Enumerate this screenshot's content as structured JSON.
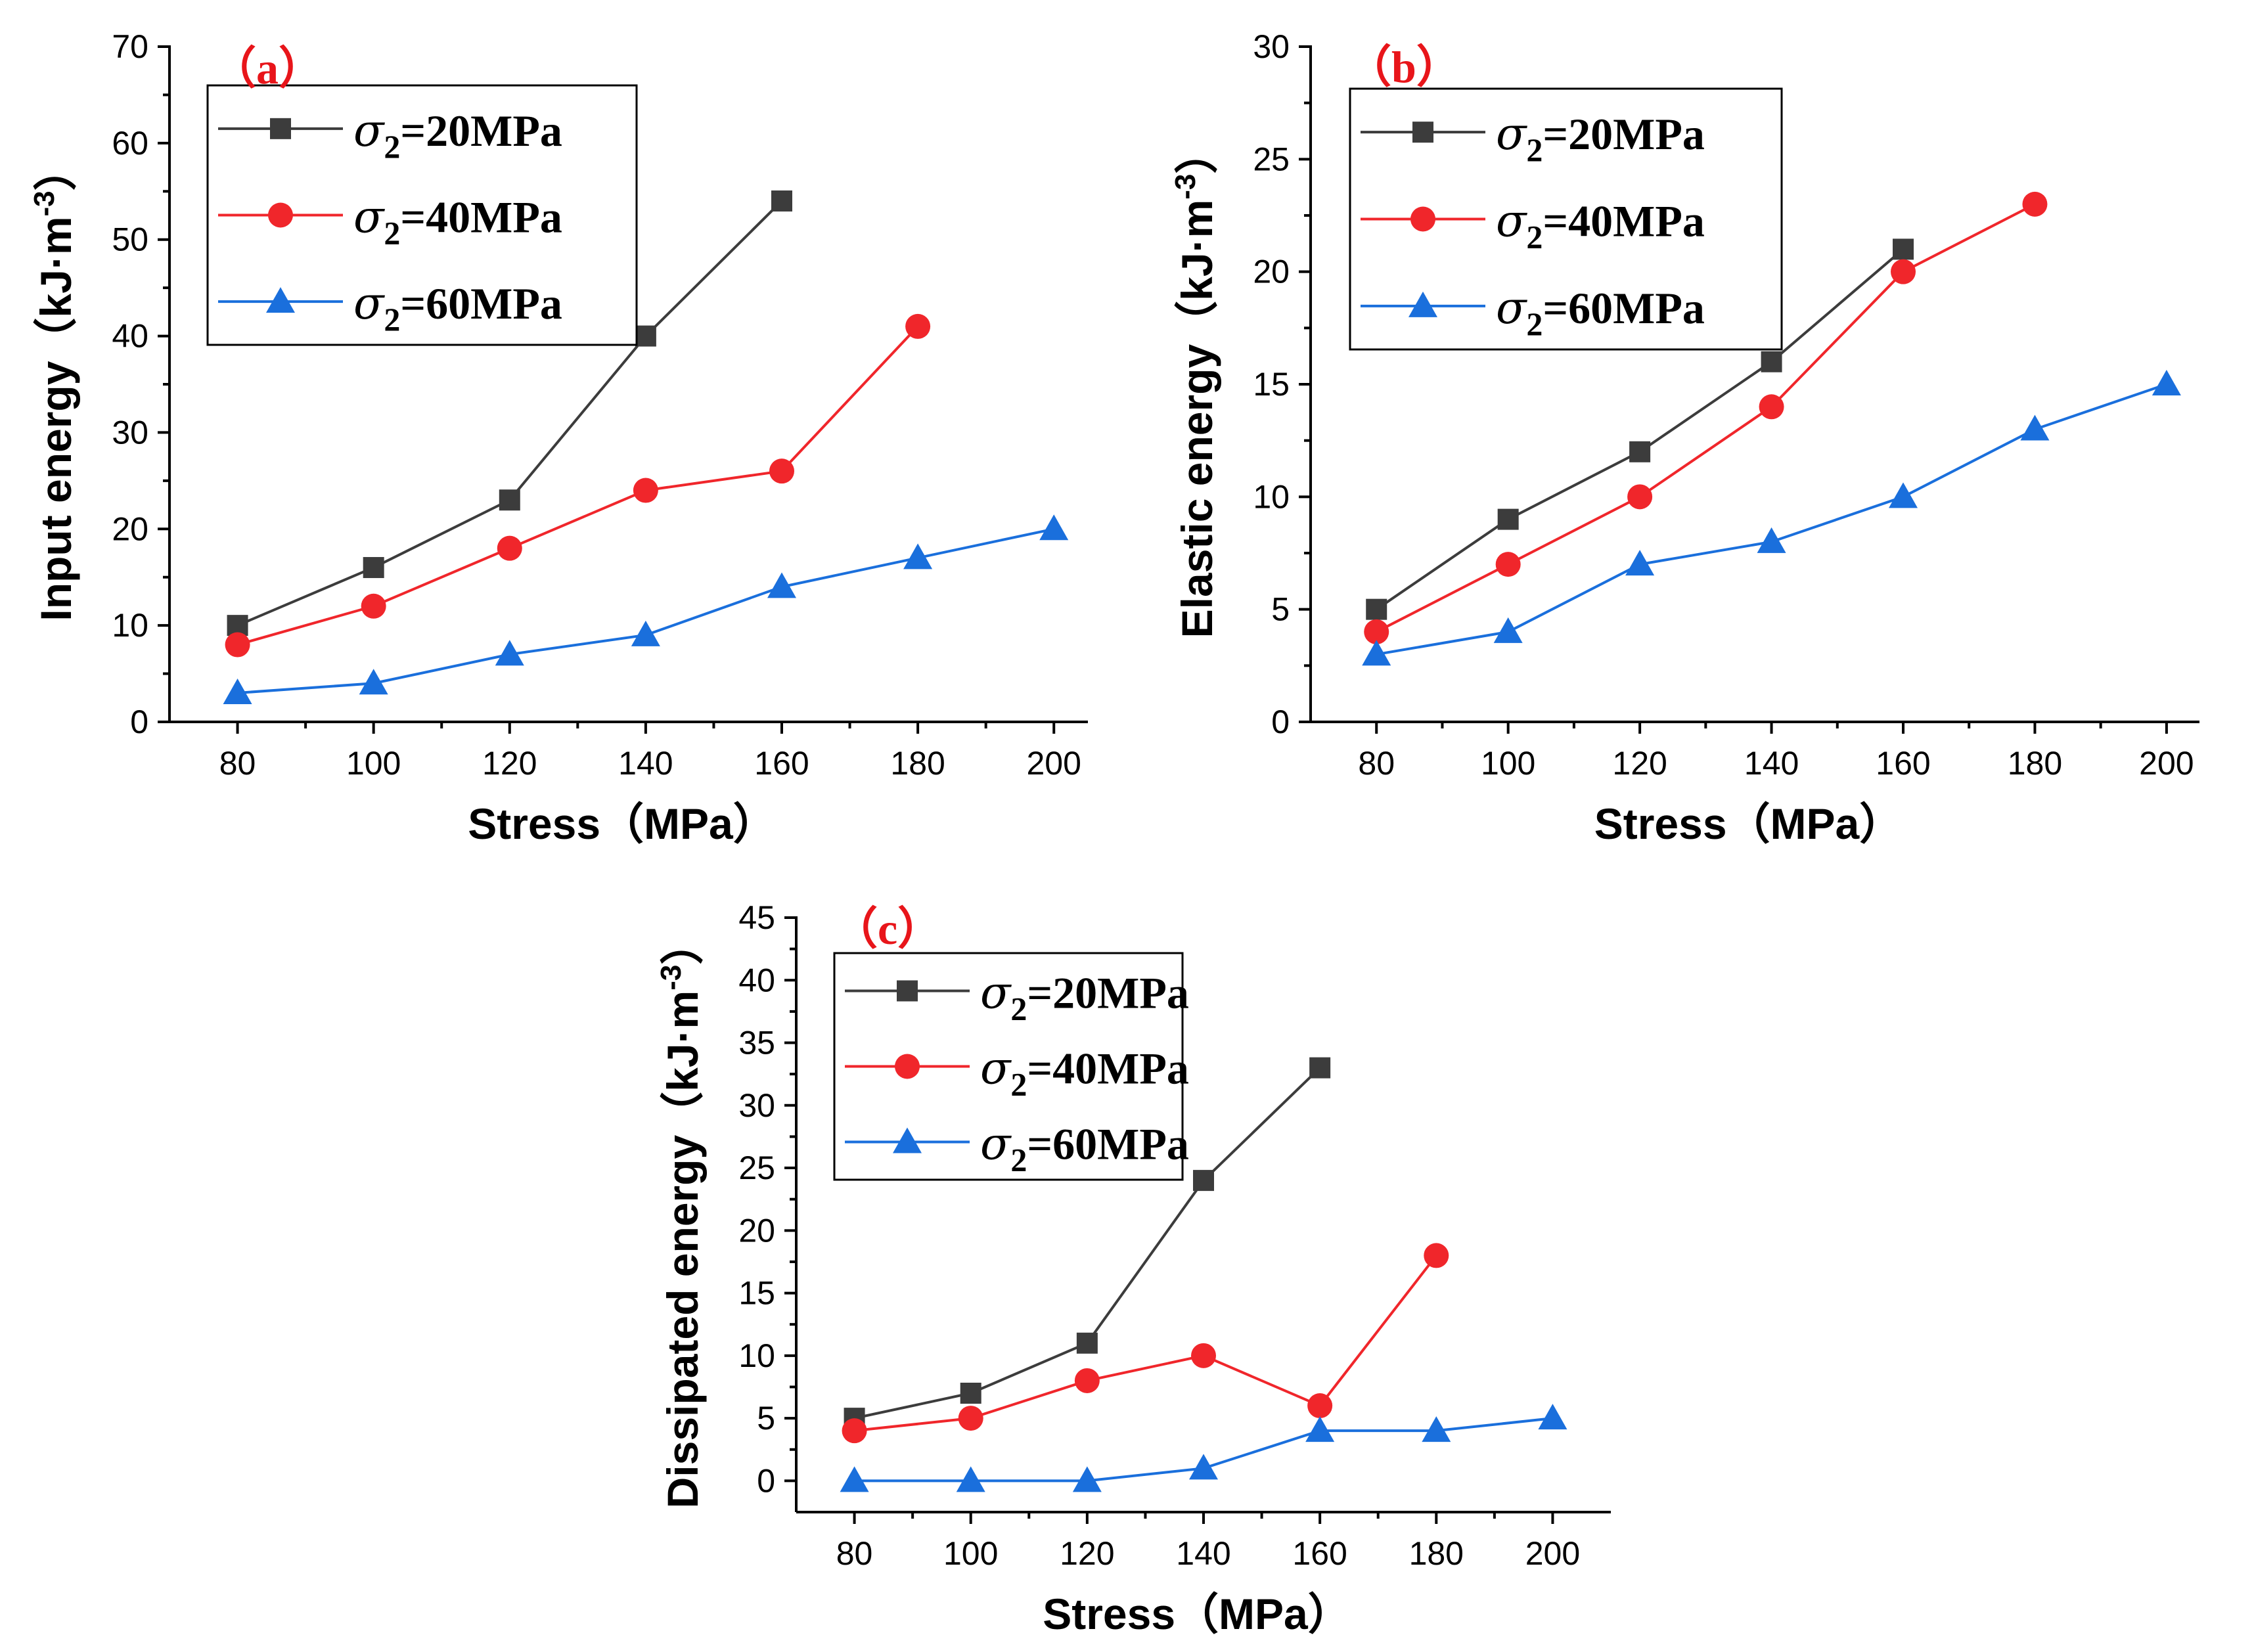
{
  "colors": {
    "s20": "#3c3c3c",
    "s40": "#f0262b",
    "s60": "#1a6fdc",
    "label": "#e8151a"
  },
  "legend_symbol": "σ",
  "chart_data": [
    {
      "id": "a",
      "type": "line",
      "panel_label": "（a）",
      "xlabel": "Stress（MPa）",
      "ylabel": "Input energy（kJ·m",
      "ylabel_sup": "-3",
      "ylabel_close": "）",
      "xlim": [
        70,
        205
      ],
      "ylim": [
        0,
        70
      ],
      "xticks": [
        80,
        100,
        120,
        140,
        160,
        180,
        200
      ],
      "yticks": [
        0,
        10,
        20,
        30,
        40,
        50,
        60,
        70
      ],
      "series": [
        {
          "name": "σ2=20MPa",
          "sub": "2",
          "value_text": "=20MPa",
          "marker": "square",
          "color": "#3c3c3c",
          "x": [
            80,
            100,
            120,
            140,
            160
          ],
          "y": [
            10,
            16,
            23,
            40,
            54
          ]
        },
        {
          "name": "σ2=40MPa",
          "sub": "2",
          "value_text": "=40MPa",
          "marker": "circle",
          "color": "#f0262b",
          "x": [
            80,
            100,
            120,
            140,
            160,
            180
          ],
          "y": [
            8,
            12,
            18,
            24,
            26,
            41
          ]
        },
        {
          "name": "σ2=60MPa",
          "sub": "2",
          "value_text": "=60MPa",
          "marker": "triangle",
          "color": "#1a6fdc",
          "x": [
            80,
            100,
            120,
            140,
            160,
            180,
            200
          ],
          "y": [
            3,
            4,
            7,
            9,
            14,
            17,
            20
          ]
        }
      ]
    },
    {
      "id": "b",
      "type": "line",
      "panel_label": "（b）",
      "xlabel": "Stress（MPa）",
      "ylabel": "Elastic energy（kJ·m",
      "ylabel_sup": "-3",
      "ylabel_close": "）",
      "xlim": [
        70,
        205
      ],
      "ylim": [
        0,
        30
      ],
      "xticks": [
        80,
        100,
        120,
        140,
        160,
        180,
        200
      ],
      "yticks": [
        0,
        5,
        10,
        15,
        20,
        25,
        30
      ],
      "series": [
        {
          "name": "σ2=20MPa",
          "sub": "2",
          "value_text": "=20MPa",
          "marker": "square",
          "color": "#3c3c3c",
          "x": [
            80,
            100,
            120,
            140,
            160
          ],
          "y": [
            5,
            9,
            12,
            16,
            21
          ]
        },
        {
          "name": "σ2=40MPa",
          "sub": "2",
          "value_text": "=40MPa",
          "marker": "circle",
          "color": "#f0262b",
          "x": [
            80,
            100,
            120,
            140,
            160,
            180
          ],
          "y": [
            4,
            7,
            10,
            14,
            20,
            23
          ]
        },
        {
          "name": "σ2=60MPa",
          "sub": "2",
          "value_text": "=60MPa",
          "marker": "triangle",
          "color": "#1a6fdc",
          "x": [
            80,
            100,
            120,
            140,
            160,
            180,
            200
          ],
          "y": [
            3,
            4,
            7,
            8,
            10,
            13,
            15
          ]
        }
      ]
    },
    {
      "id": "c",
      "type": "line",
      "panel_label": "（c）",
      "xlabel": "Stress（MPa）",
      "ylabel": "Dissipated energy（kJ·m",
      "ylabel_sup": "-3",
      "ylabel_close": "）",
      "xlim": [
        70,
        210
      ],
      "ylim": [
        -2.5,
        45
      ],
      "xticks": [
        80,
        100,
        120,
        140,
        160,
        180,
        200
      ],
      "yticks": [
        0,
        5,
        10,
        15,
        20,
        25,
        30,
        35,
        40,
        45
      ],
      "series": [
        {
          "name": "σ2=20MPa",
          "sub": "2",
          "value_text": "=20MPa",
          "marker": "square",
          "color": "#3c3c3c",
          "x": [
            80,
            100,
            120,
            140,
            160
          ],
          "y": [
            5,
            7,
            11,
            24,
            33
          ]
        },
        {
          "name": "σ2=40MPa",
          "sub": "2",
          "value_text": "=40MPa",
          "marker": "circle",
          "color": "#f0262b",
          "x": [
            80,
            100,
            120,
            140,
            160,
            180
          ],
          "y": [
            4,
            5,
            8,
            10,
            6,
            18
          ]
        },
        {
          "name": "σ2=60MPa",
          "sub": "2",
          "value_text": "=60MPa",
          "marker": "triangle",
          "color": "#1a6fdc",
          "x": [
            80,
            100,
            120,
            140,
            160,
            180,
            200
          ],
          "y": [
            0,
            0,
            0,
            1,
            4,
            4,
            5
          ]
        }
      ]
    }
  ]
}
